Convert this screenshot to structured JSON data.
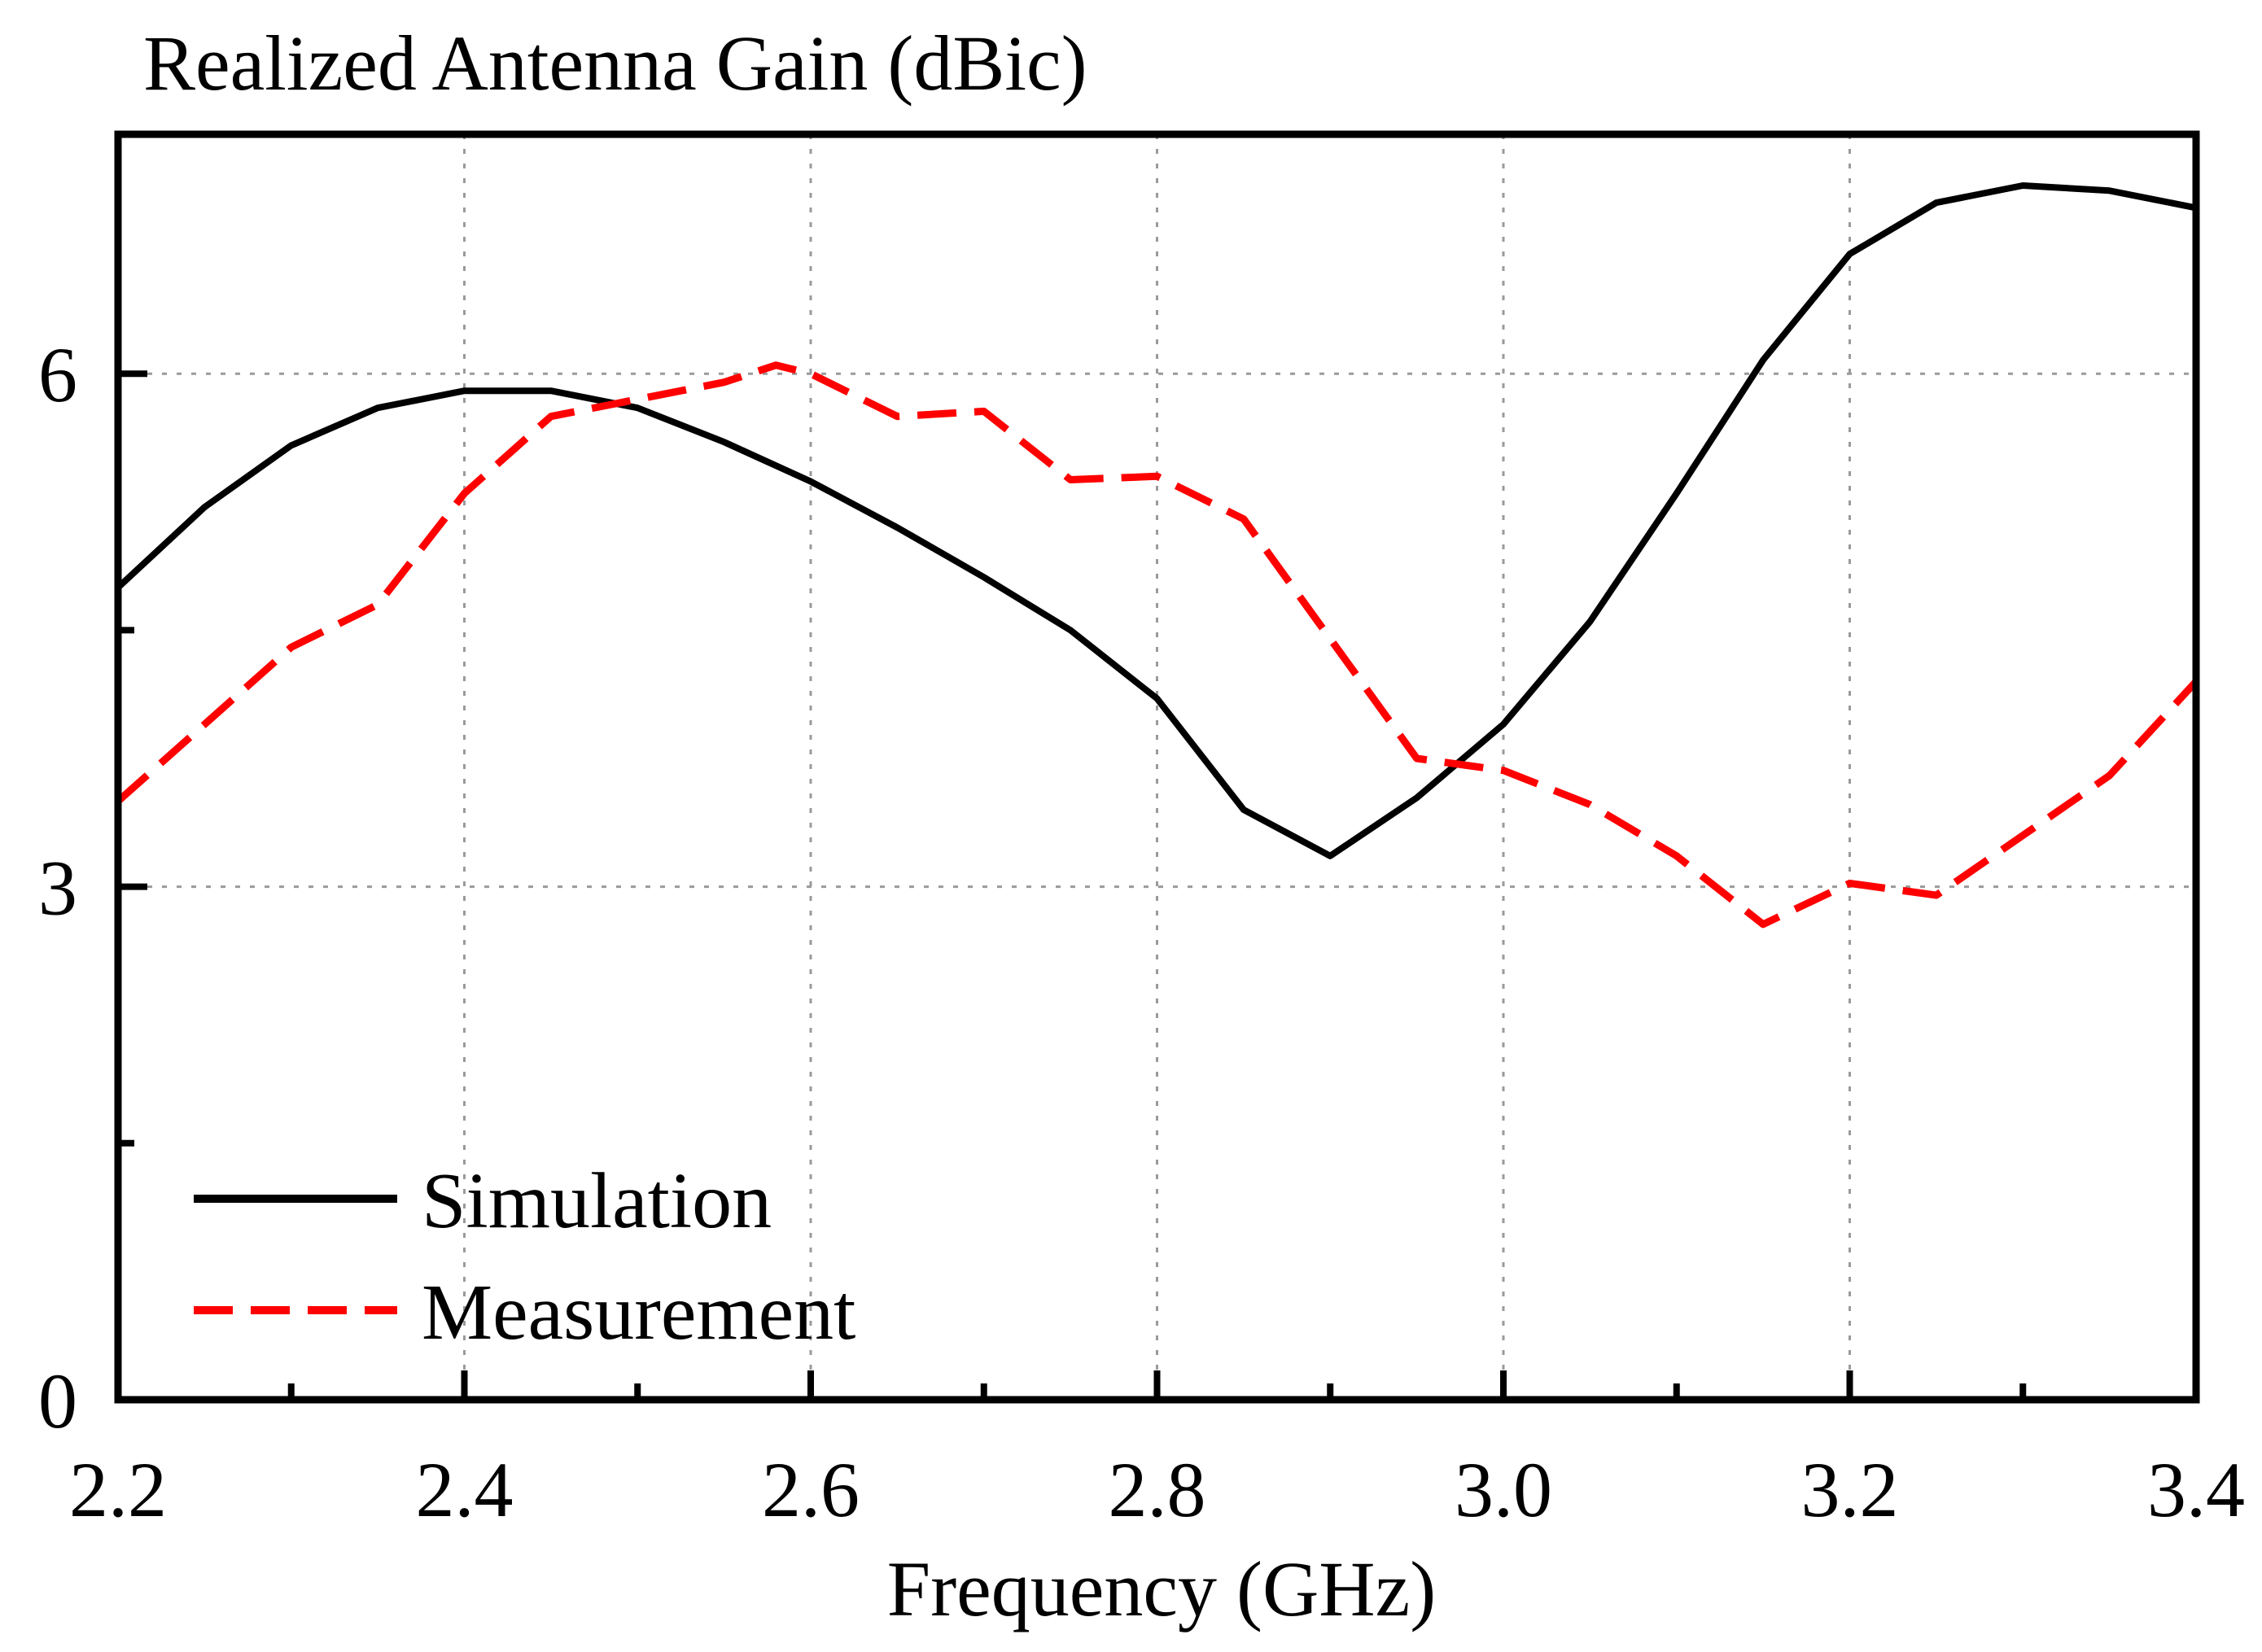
{
  "chart_data": {
    "type": "line",
    "title": "",
    "ylabel": "Realized Antenna Gain (dBic)",
    "xlabel": "Frequency (GHz)",
    "xlim": [
      2.2,
      3.4
    ],
    "ylim": [
      0,
      7.4
    ],
    "x_ticks": [
      "2.2",
      "2.4",
      "2.6",
      "2.8",
      "3.0",
      "3.2",
      "3.4"
    ],
    "x_tick_values": [
      2.2,
      2.4,
      2.6,
      2.8,
      3.0,
      3.2,
      3.4
    ],
    "y_ticks": [
      "0",
      "3",
      "6"
    ],
    "y_tick_values": [
      0,
      3,
      6
    ],
    "grid": true,
    "legend_position": "bottom-left",
    "series": [
      {
        "name": "Simulation",
        "color": "#000000",
        "style": "solid",
        "x": [
          2.2,
          2.25,
          2.3,
          2.35,
          2.4,
          2.45,
          2.5,
          2.55,
          2.6,
          2.65,
          2.7,
          2.75,
          2.8,
          2.85,
          2.9,
          2.95,
          3.0,
          3.05,
          3.1,
          3.15,
          3.2,
          3.25,
          3.3,
          3.35,
          3.4
        ],
        "values": [
          4.75,
          5.22,
          5.58,
          5.8,
          5.9,
          5.9,
          5.8,
          5.6,
          5.37,
          5.1,
          4.81,
          4.5,
          4.1,
          3.45,
          3.18,
          3.52,
          3.95,
          4.55,
          5.3,
          6.08,
          6.7,
          7.0,
          7.1,
          7.07,
          6.97
        ]
      },
      {
        "name": "Measurement",
        "color": "#ff0000",
        "style": "dashed",
        "x": [
          2.2,
          2.25,
          2.3,
          2.35,
          2.4,
          2.45,
          2.5,
          2.55,
          2.58,
          2.6,
          2.65,
          2.7,
          2.75,
          2.8,
          2.85,
          2.9,
          2.95,
          3.0,
          3.05,
          3.1,
          3.15,
          3.2,
          3.25,
          3.3,
          3.35,
          3.4
        ],
        "values": [
          3.5,
          3.95,
          4.4,
          4.65,
          5.3,
          5.75,
          5.85,
          5.95,
          6.05,
          6.0,
          5.75,
          5.78,
          5.38,
          5.4,
          5.15,
          4.45,
          3.75,
          3.68,
          3.48,
          3.18,
          2.78,
          3.02,
          2.95,
          3.3,
          3.65,
          4.2
        ]
      }
    ]
  }
}
